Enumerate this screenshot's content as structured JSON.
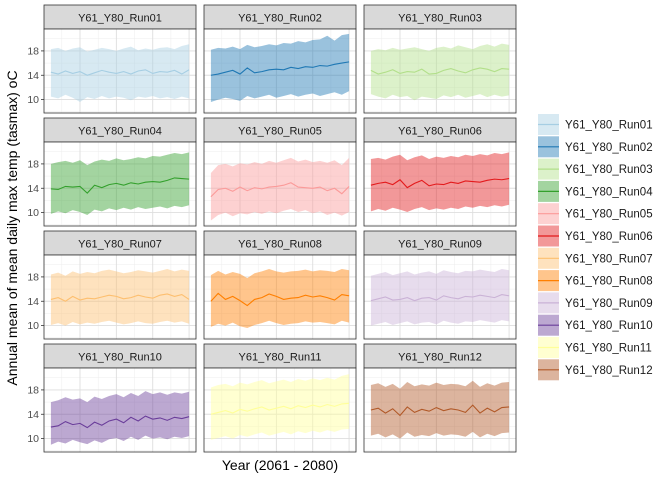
{
  "chart_data": {
    "type": "area",
    "xlabel": "Year (2061 - 2080)",
    "ylabel": "Annual mean of mean daily max temp (tasmax) oC",
    "x": [
      2061,
      2062,
      2063,
      2064,
      2065,
      2066,
      2067,
      2068,
      2069,
      2070,
      2071,
      2072,
      2073,
      2074,
      2075,
      2076,
      2077,
      2078,
      2079,
      2080
    ],
    "xlim": [
      2060.05,
      2080.95
    ],
    "ylim": [
      7.8,
      21.6
    ],
    "yticks": [
      10,
      14,
      18
    ],
    "grid": true,
    "facet_layout": "4x3",
    "legend_position": "right",
    "panels": [
      {
        "name": "Y61_Y80_Run01",
        "fill": "#a6cee3",
        "line": "#a6cee3",
        "mean": [
          14.5,
          14.2,
          14.7,
          14.3,
          14.6,
          14.0,
          14.4,
          14.8,
          14.5,
          14.3,
          14.6,
          14.2,
          14.7,
          14.9,
          14.3,
          14.6,
          14.5,
          14.8,
          14.2,
          14.9
        ],
        "upper": [
          18.3,
          18.5,
          18.0,
          18.4,
          18.6,
          17.9,
          18.2,
          18.5,
          18.3,
          18.0,
          18.4,
          18.7,
          18.1,
          18.4,
          18.2,
          18.5,
          18.6,
          18.3,
          18.8,
          19.1
        ],
        "lower": [
          10.5,
          10.2,
          10.8,
          10.3,
          9.6,
          10.4,
          10.1,
          10.6,
          10.2,
          10.5,
          10.3,
          9.9,
          10.5,
          10.3,
          10.6,
          10.2,
          10.4,
          10.1,
          10.5,
          10.2
        ]
      },
      {
        "name": "Y61_Y80_Run02",
        "fill": "#1f78b4",
        "line": "#1f78b4",
        "mean": [
          14.0,
          14.2,
          14.5,
          14.8,
          14.2,
          15.2,
          14.4,
          14.6,
          14.9,
          15.0,
          14.9,
          15.3,
          15.1,
          15.4,
          15.3,
          15.6,
          15.5,
          15.8,
          16.0,
          16.2
        ],
        "upper": [
          18.2,
          18.5,
          18.4,
          18.7,
          18.3,
          19.0,
          18.6,
          18.8,
          19.1,
          18.9,
          19.3,
          19.2,
          19.6,
          19.4,
          19.8,
          19.9,
          20.5,
          19.7,
          20.6,
          20.8
        ],
        "lower": [
          9.6,
          10.0,
          10.3,
          10.1,
          9.8,
          10.6,
          10.2,
          10.5,
          10.8,
          10.3,
          10.6,
          10.9,
          10.5,
          10.8,
          11.0,
          10.6,
          10.9,
          11.2,
          10.8,
          11.4
        ]
      },
      {
        "name": "Y61_Y80_Run03",
        "fill": "#b2df8a",
        "line": "#b2df8a",
        "mean": [
          14.8,
          14.2,
          14.5,
          14.9,
          14.3,
          14.6,
          14.5,
          15.0,
          14.2,
          14.3,
          14.8,
          15.1,
          14.7,
          14.4,
          14.9,
          15.2,
          15.0,
          14.6,
          15.1,
          15.0
        ],
        "upper": [
          18.0,
          18.3,
          18.1,
          18.5,
          18.2,
          18.4,
          18.6,
          18.3,
          18.0,
          18.5,
          18.7,
          18.4,
          18.9,
          18.6,
          18.3,
          18.8,
          19.1,
          18.7,
          19.2,
          19.0
        ],
        "lower": [
          10.9,
          10.5,
          10.2,
          10.8,
          10.4,
          10.6,
          9.9,
          10.5,
          10.3,
          10.1,
          10.7,
          10.4,
          10.8,
          10.3,
          10.6,
          10.9,
          10.4,
          10.8,
          10.5,
          10.7
        ]
      },
      {
        "name": "Y61_Y80_Run04",
        "fill": "#33a02c",
        "line": "#33a02c",
        "mean": [
          13.9,
          13.8,
          14.3,
          14.2,
          14.3,
          13.2,
          14.5,
          14.1,
          14.6,
          14.8,
          14.5,
          14.9,
          14.7,
          15.0,
          15.1,
          15.0,
          15.3,
          15.7,
          15.6,
          15.5
        ],
        "upper": [
          18.0,
          18.3,
          18.5,
          18.2,
          18.6,
          17.8,
          18.4,
          18.7,
          18.5,
          18.9,
          18.6,
          18.8,
          19.1,
          18.9,
          19.3,
          19.2,
          19.5,
          19.8,
          19.6,
          19.9
        ],
        "lower": [
          9.8,
          10.2,
          9.9,
          10.4,
          10.1,
          9.6,
          10.5,
          10.2,
          10.7,
          10.4,
          10.8,
          10.5,
          10.9,
          10.6,
          10.8,
          11.0,
          10.7,
          11.1,
          10.9,
          11.2
        ]
      },
      {
        "name": "Y61_Y80_Run05",
        "fill": "#fb9a99",
        "line": "#fb9a99",
        "mean": [
          12.6,
          13.8,
          14.0,
          13.5,
          14.2,
          13.6,
          14.1,
          13.9,
          14.2,
          14.3,
          14.5,
          14.9,
          14.2,
          14.1,
          14.0,
          14.2,
          13.6,
          14.0,
          13.1,
          14.3
        ],
        "upper": [
          16.5,
          17.8,
          18.0,
          17.6,
          18.1,
          17.9,
          18.3,
          18.0,
          18.5,
          18.2,
          18.6,
          19.0,
          18.4,
          18.7,
          18.3,
          18.5,
          18.2,
          18.6,
          17.8,
          19.0
        ],
        "lower": [
          8.7,
          9.6,
          10.0,
          9.4,
          9.9,
          9.7,
          10.1,
          9.8,
          10.2,
          9.9,
          10.3,
          10.6,
          10.1,
          10.4,
          9.9,
          10.2,
          9.6,
          10.0,
          9.5,
          10.1
        ]
      },
      {
        "name": "Y61_Y80_Run06",
        "fill": "#e31a1c",
        "line": "#e31a1c",
        "mean": [
          14.5,
          14.8,
          15.0,
          14.6,
          15.4,
          14.1,
          14.8,
          15.3,
          14.4,
          14.7,
          14.6,
          15.0,
          14.8,
          15.2,
          15.1,
          15.0,
          15.3,
          15.5,
          15.4,
          15.6
        ],
        "upper": [
          18.8,
          19.0,
          18.7,
          19.2,
          19.5,
          18.6,
          19.1,
          19.4,
          18.8,
          19.2,
          19.0,
          19.3,
          19.1,
          19.5,
          19.3,
          19.6,
          19.4,
          19.8,
          19.6,
          19.9
        ],
        "lower": [
          10.2,
          10.6,
          10.3,
          10.8,
          10.5,
          10.1,
          10.6,
          10.9,
          10.4,
          10.7,
          10.5,
          10.8,
          10.6,
          11.0,
          10.8,
          11.1,
          10.9,
          11.2,
          11.0,
          11.3
        ]
      },
      {
        "name": "Y61_Y80_Run07",
        "fill": "#fdbf6f",
        "line": "#fdbf6f",
        "mean": [
          14.3,
          14.6,
          14.0,
          14.8,
          14.2,
          14.5,
          14.4,
          14.7,
          15.0,
          14.8,
          14.4,
          14.6,
          15.0,
          14.7,
          14.5,
          15.0,
          15.2,
          14.8,
          15.1,
          14.3
        ],
        "upper": [
          18.4,
          18.7,
          18.2,
          18.9,
          18.5,
          18.8,
          18.6,
          19.0,
          19.2,
          18.9,
          18.6,
          18.8,
          19.1,
          18.9,
          18.7,
          19.0,
          19.3,
          18.9,
          19.2,
          19.0
        ],
        "lower": [
          10.1,
          10.4,
          10.0,
          10.6,
          10.2,
          10.5,
          10.3,
          10.6,
          10.8,
          10.5,
          10.2,
          10.4,
          10.7,
          10.4,
          10.3,
          10.6,
          10.8,
          10.5,
          10.7,
          10.3
        ]
      },
      {
        "name": "Y61_Y80_Run08",
        "fill": "#ff7f00",
        "line": "#ff7f00",
        "mean": [
          14.0,
          15.3,
          14.3,
          14.8,
          14.1,
          13.3,
          14.3,
          14.6,
          15.2,
          14.8,
          14.3,
          14.5,
          14.6,
          15.0,
          14.7,
          14.9,
          14.6,
          14.2,
          15.1,
          14.9
        ],
        "upper": [
          18.3,
          19.0,
          18.4,
          18.8,
          18.5,
          17.8,
          18.6,
          18.9,
          19.3,
          18.9,
          18.7,
          18.9,
          19.0,
          19.2,
          18.9,
          19.1,
          19.0,
          18.8,
          19.3,
          19.1
        ],
        "lower": [
          9.8,
          10.3,
          10.0,
          10.5,
          9.9,
          9.6,
          10.1,
          10.4,
          10.8,
          10.4,
          10.1,
          10.3,
          10.4,
          10.7,
          10.5,
          10.6,
          10.4,
          10.2,
          10.8,
          10.5
        ],
        "stroke_note": ""
      },
      {
        "name": "Y61_Y80_Run09",
        "fill": "#cab2d6",
        "line": "#cab2d6",
        "mean": [
          14.1,
          14.4,
          14.7,
          14.2,
          14.3,
          14.6,
          14.1,
          14.5,
          14.6,
          14.2,
          14.9,
          14.6,
          14.4,
          14.8,
          14.7,
          15.0,
          14.8,
          14.6,
          15.1,
          14.9
        ],
        "upper": [
          18.2,
          18.5,
          18.8,
          18.3,
          18.6,
          18.9,
          18.4,
          18.7,
          18.9,
          18.5,
          19.1,
          18.8,
          18.6,
          19.0,
          18.9,
          19.2,
          19.0,
          18.8,
          19.3,
          19.1
        ],
        "lower": [
          10.0,
          10.3,
          10.6,
          10.1,
          10.4,
          10.7,
          10.2,
          10.5,
          10.6,
          10.2,
          10.8,
          10.5,
          10.3,
          10.7,
          10.6,
          10.9,
          10.7,
          10.5,
          10.9,
          10.7
        ]
      },
      {
        "name": "Y61_Y80_Run10",
        "fill": "#6a3d9a",
        "line": "#6a3d9a",
        "mean": [
          11.9,
          12.1,
          12.8,
          12.3,
          12.5,
          11.8,
          12.7,
          12.2,
          12.9,
          13.2,
          12.6,
          13.5,
          12.9,
          13.7,
          13.2,
          13.4,
          13.0,
          13.5,
          13.3,
          13.6
        ],
        "upper": [
          16.0,
          16.3,
          16.8,
          16.4,
          16.6,
          16.0,
          16.9,
          16.5,
          17.0,
          17.3,
          16.8,
          17.5,
          17.0,
          17.8,
          17.3,
          17.6,
          17.2,
          17.6,
          17.4,
          17.7
        ],
        "lower": [
          9.0,
          9.5,
          9.2,
          9.8,
          9.4,
          9.1,
          9.7,
          9.3,
          9.9,
          10.1,
          9.6,
          10.3,
          9.8,
          10.5,
          10.0,
          10.2,
          9.9,
          10.3,
          10.1,
          10.4
        ]
      },
      {
        "name": "Y61_Y80_Run11",
        "fill": "#ffff99",
        "line": "#ffff99",
        "mean": [
          14.0,
          14.3,
          14.6,
          14.2,
          14.8,
          14.5,
          14.9,
          15.2,
          14.7,
          15.0,
          15.3,
          14.9,
          15.4,
          15.1,
          15.5,
          15.2,
          15.6,
          15.3,
          15.7,
          15.8
        ],
        "upper": [
          18.4,
          18.8,
          19.0,
          18.6,
          19.2,
          18.9,
          19.3,
          19.6,
          19.1,
          19.4,
          19.7,
          19.3,
          19.8,
          19.5,
          19.9,
          19.6,
          20.0,
          19.7,
          20.3,
          20.6
        ],
        "lower": [
          9.8,
          10.1,
          10.4,
          10.0,
          10.6,
          10.3,
          10.7,
          11.0,
          10.5,
          10.8,
          11.1,
          10.7,
          11.2,
          10.9,
          11.3,
          11.0,
          11.4,
          11.1,
          11.5,
          11.6
        ]
      },
      {
        "name": "Y61_Y80_Run12",
        "fill": "#b15928",
        "line": "#b15928",
        "mean": [
          14.7,
          15.0,
          14.2,
          14.9,
          13.8,
          15.2,
          14.3,
          14.8,
          14.5,
          15.1,
          14.6,
          14.9,
          14.7,
          14.3,
          15.5,
          14.2,
          15.0,
          14.4,
          15.1,
          15.2
        ],
        "upper": [
          18.8,
          19.1,
          18.5,
          19.0,
          18.2,
          19.3,
          18.6,
          18.9,
          18.7,
          19.2,
          18.8,
          19.0,
          18.9,
          18.6,
          19.5,
          18.5,
          19.1,
          18.7,
          19.2,
          19.3
        ],
        "lower": [
          10.5,
          10.8,
          10.2,
          10.7,
          10.0,
          11.0,
          10.3,
          10.6,
          10.4,
          10.9,
          10.5,
          10.7,
          10.6,
          10.3,
          11.1,
          10.2,
          10.8,
          10.4,
          10.9,
          11.0
        ]
      }
    ]
  }
}
